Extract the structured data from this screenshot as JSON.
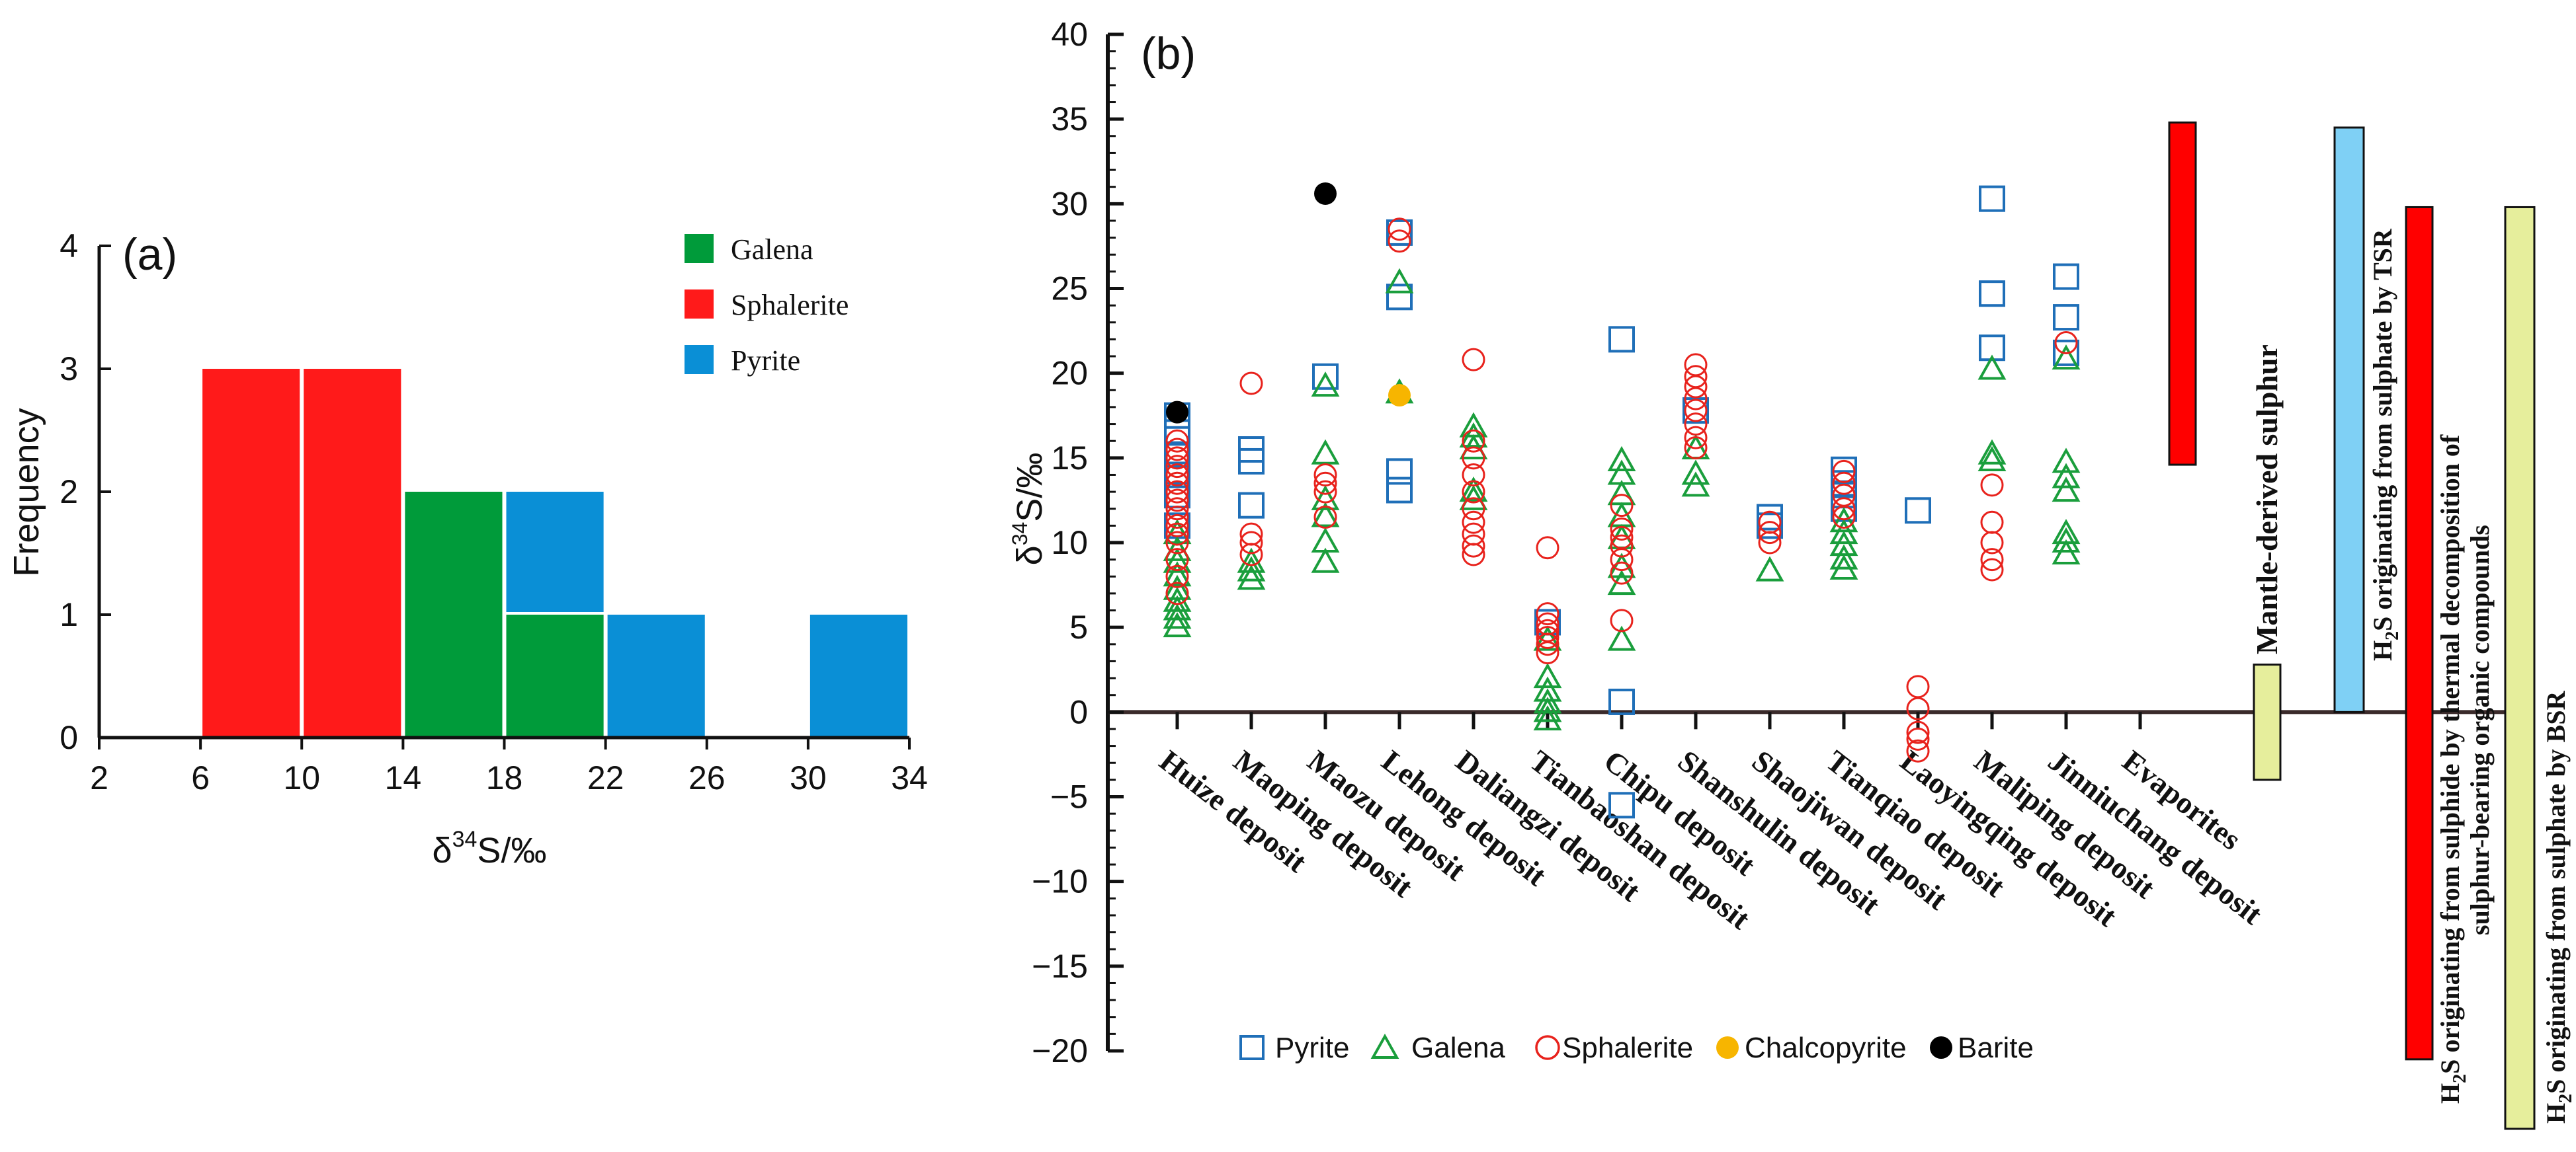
{
  "chart_data": [
    {
      "id": "a",
      "type": "bar",
      "stacked": true,
      "panel_label": "(a)",
      "xlabel_main": "δ",
      "xlabel_sup": "34",
      "xlabel_rest": "S/‰",
      "ylabel": "Frequency",
      "xlim": [
        2,
        34
      ],
      "ylim": [
        0,
        4
      ],
      "x_ticks": [
        "2",
        "6",
        "10",
        "14",
        "18",
        "22",
        "26",
        "30",
        "34"
      ],
      "y_ticks": [
        "0",
        "1",
        "2",
        "3",
        "4"
      ],
      "legend": [
        {
          "name": "Galena",
          "color": "#009b3a"
        },
        {
          "name": "Sphalerite",
          "color": "#ff1a1a"
        },
        {
          "name": "Pyrite",
          "color": "#0a8fd6"
        }
      ],
      "bars": [
        {
          "x0": 6,
          "x1": 10,
          "series": "Sphalerite",
          "value": 3,
          "base": 0
        },
        {
          "x0": 10,
          "x1": 14,
          "series": "Sphalerite",
          "value": 3,
          "base": 0
        },
        {
          "x0": 14,
          "x1": 18,
          "series": "Galena",
          "value": 2,
          "base": 0
        },
        {
          "x0": 18,
          "x1": 22,
          "series": "Galena",
          "value": 1,
          "base": 0
        },
        {
          "x0": 18,
          "x1": 22,
          "series": "Pyrite",
          "value": 1,
          "base": 1
        },
        {
          "x0": 22,
          "x1": 26,
          "series": "Pyrite",
          "value": 1,
          "base": 0
        },
        {
          "x0": 30,
          "x1": 34,
          "series": "Pyrite",
          "value": 1,
          "base": 0
        }
      ]
    },
    {
      "id": "b",
      "type": "scatter",
      "panel_label": "(b)",
      "ylabel_main": "δ",
      "ylabel_sup": "34",
      "ylabel_rest": "S/‰",
      "ylim": [
        -20,
        40
      ],
      "y_ticks": [
        "−20",
        "−15",
        "−10",
        "−5",
        "0",
        "5",
        "10",
        "15",
        "20",
        "25",
        "30",
        "35",
        "40"
      ],
      "categories": [
        "Huize deposit",
        "Maoping deposit",
        "Maozu deposit",
        "Lehong deposit",
        "Daliangzi deposit",
        "Tianbaoshan deposit",
        "Chipu deposit",
        "Shanshulin deposit",
        "Shaojiwan deposit",
        "Tianqiao deposit",
        "Laoyingqing deposit",
        "Maliping deposit",
        "Jinniuchang deposit",
        "Evaporites"
      ],
      "legend": [
        {
          "name": "Pyrite",
          "symbol": "square",
          "color": "#1f6fb8"
        },
        {
          "name": "Galena",
          "symbol": "triangle",
          "color": "#1a9e3c"
        },
        {
          "name": "Sphalerite",
          "symbol": "circle",
          "color": "#e8221c"
        },
        {
          "name": "Chalcopyrite",
          "symbol": "filled-circle",
          "color": "#f7b500"
        },
        {
          "name": "Barite",
          "symbol": "filled-circle",
          "color": "#000000"
        }
      ],
      "series": [
        {
          "name": "Pyrite",
          "points": [
            [
              0,
              17.5
            ],
            [
              0,
              16.5
            ],
            [
              0,
              15.2
            ],
            [
              0,
              14.0
            ],
            [
              0,
              12.8
            ],
            [
              0,
              11.0
            ],
            [
              1,
              15.5
            ],
            [
              1,
              14.8
            ],
            [
              1,
              12.2
            ],
            [
              2,
              19.8
            ],
            [
              3,
              28.3
            ],
            [
              3,
              24.5
            ],
            [
              3,
              14.2
            ],
            [
              3,
              13.1
            ],
            [
              5,
              5.3
            ],
            [
              6,
              22.0
            ],
            [
              6,
              0.6
            ],
            [
              6,
              -5.5
            ],
            [
              7,
              17.8
            ],
            [
              8,
              11.5
            ],
            [
              8,
              11.0
            ],
            [
              9,
              14.3
            ],
            [
              9,
              13.5
            ],
            [
              9,
              12.8
            ],
            [
              9,
              12.0
            ],
            [
              10,
              11.9
            ],
            [
              11,
              30.3
            ],
            [
              11,
              24.7
            ],
            [
              11,
              21.5
            ],
            [
              12,
              25.7
            ],
            [
              12,
              23.3
            ],
            [
              12,
              21.2
            ]
          ]
        },
        {
          "name": "Galena",
          "points": [
            [
              0,
              10.5
            ],
            [
              0,
              9.5
            ],
            [
              0,
              8.8
            ],
            [
              0,
              8.0
            ],
            [
              0,
              7.2
            ],
            [
              0,
              6.5
            ],
            [
              0,
              6.0
            ],
            [
              0,
              5.5
            ],
            [
              0,
              5.0
            ],
            [
              1,
              8.8
            ],
            [
              1,
              8.3
            ],
            [
              1,
              7.8
            ],
            [
              2,
              19.2
            ],
            [
              2,
              15.2
            ],
            [
              2,
              12.5
            ],
            [
              2,
              11.5
            ],
            [
              2,
              10.0
            ],
            [
              2,
              8.8
            ],
            [
              3,
              25.3
            ],
            [
              3,
              18.8
            ],
            [
              4,
              16.8
            ],
            [
              4,
              16.2
            ],
            [
              4,
              15.5
            ],
            [
              4,
              13.0
            ],
            [
              4,
              12.5
            ],
            [
              5,
              4.2
            ],
            [
              5,
              2.0
            ],
            [
              5,
              1.2
            ],
            [
              5,
              0.5
            ],
            [
              5,
              0.0
            ],
            [
              5,
              -0.5
            ],
            [
              6,
              14.8
            ],
            [
              6,
              14.0
            ],
            [
              6,
              12.8
            ],
            [
              6,
              11.5
            ],
            [
              6,
              10.2
            ],
            [
              6,
              8.5
            ],
            [
              6,
              7.5
            ],
            [
              6,
              4.2
            ],
            [
              7,
              15.5
            ],
            [
              7,
              14.0
            ],
            [
              7,
              13.3
            ],
            [
              8,
              8.3
            ],
            [
              9,
              11.2
            ],
            [
              9,
              10.5
            ],
            [
              9,
              9.8
            ],
            [
              9,
              9.0
            ],
            [
              9,
              8.4
            ],
            [
              11,
              20.2
            ],
            [
              11,
              15.2
            ],
            [
              11,
              14.8
            ],
            [
              12,
              20.8
            ],
            [
              12,
              14.7
            ],
            [
              12,
              13.8
            ],
            [
              12,
              13.0
            ],
            [
              12,
              10.5
            ],
            [
              12,
              10.0
            ],
            [
              12,
              9.3
            ]
          ]
        },
        {
          "name": "Sphalerite",
          "points": [
            [
              0,
              16.0
            ],
            [
              0,
              15.5
            ],
            [
              0,
              15.0
            ],
            [
              0,
              14.5
            ],
            [
              0,
              14.0
            ],
            [
              0,
              13.5
            ],
            [
              0,
              13.0
            ],
            [
              0,
              12.5
            ],
            [
              0,
              12.0
            ],
            [
              0,
              11.5
            ],
            [
              0,
              11.0
            ],
            [
              0,
              10.5
            ],
            [
              0,
              10.0
            ],
            [
              0,
              9.0
            ],
            [
              0,
              8.0
            ],
            [
              0,
              7.0
            ],
            [
              1,
              19.4
            ],
            [
              1,
              10.5
            ],
            [
              1,
              10.0
            ],
            [
              1,
              9.3
            ],
            [
              2,
              14.0
            ],
            [
              2,
              13.5
            ],
            [
              2,
              13.0
            ],
            [
              2,
              11.5
            ],
            [
              3,
              28.5
            ],
            [
              3,
              27.8
            ],
            [
              4,
              20.8
            ],
            [
              4,
              16.0
            ],
            [
              4,
              15.0
            ],
            [
              4,
              14.0
            ],
            [
              4,
              13.0
            ],
            [
              4,
              12.0
            ],
            [
              4,
              11.2
            ],
            [
              4,
              10.5
            ],
            [
              4,
              9.8
            ],
            [
              4,
              9.3
            ],
            [
              5,
              9.7
            ],
            [
              5,
              5.8
            ],
            [
              5,
              5.2
            ],
            [
              5,
              4.8
            ],
            [
              5,
              4.4
            ],
            [
              5,
              4.0
            ],
            [
              5,
              3.5
            ],
            [
              6,
              12.2
            ],
            [
              6,
              10.8
            ],
            [
              6,
              10.3
            ],
            [
              6,
              9.8
            ],
            [
              6,
              9.0
            ],
            [
              6,
              8.2
            ],
            [
              6,
              5.4
            ],
            [
              7,
              20.5
            ],
            [
              7,
              19.8
            ],
            [
              7,
              19.2
            ],
            [
              7,
              18.5
            ],
            [
              7,
              17.8
            ],
            [
              7,
              17.0
            ],
            [
              7,
              16.2
            ],
            [
              7,
              15.6
            ],
            [
              8,
              11.2
            ],
            [
              8,
              10.6
            ],
            [
              8,
              10.0
            ],
            [
              9,
              14.2
            ],
            [
              9,
              13.5
            ],
            [
              9,
              12.8
            ],
            [
              9,
              12.0
            ],
            [
              9,
              11.5
            ],
            [
              10,
              1.5
            ],
            [
              10,
              0.2
            ],
            [
              10,
              -1.2
            ],
            [
              10,
              -1.6
            ],
            [
              10,
              -2.3
            ],
            [
              11,
              13.4
            ],
            [
              11,
              11.2
            ],
            [
              11,
              10.0
            ],
            [
              11,
              9.0
            ],
            [
              11,
              8.4
            ],
            [
              12,
              21.8
            ]
          ]
        },
        {
          "name": "Chalcopyrite",
          "points": [
            [
              3,
              18.7
            ]
          ]
        },
        {
          "name": "Barite",
          "points": [
            [
              0,
              17.7
            ],
            [
              2,
              30.6
            ]
          ]
        }
      ],
      "sources": [
        {
          "label": "Mantle-derived sulphur",
          "ymin": -4,
          "ymax": 2.8,
          "color": "#e6ee9c"
        },
        {
          "label_main": "H",
          "label_sub": "2",
          "label_rest": "S originating from sulphate by TSR",
          "ymin": 0,
          "ymax": 34.5,
          "color": "#7fd0f5"
        },
        {
          "label_main": "H",
          "label_sub": "2",
          "label_rest": "S originating from sulphide by thermal decomposition of",
          "label_line2": "sulphur-bearing organic compounds",
          "ymin": -20.5,
          "ymax": 29.8,
          "color": "#ff0000"
        },
        {
          "label_main": "H",
          "label_sub": "2",
          "label_rest": "S originating from sulphate by BSR",
          "ymin": -24.6,
          "ymax": 29.8,
          "color": "#e6ee9c"
        }
      ],
      "evaporites_bar": {
        "ymin": 14.6,
        "ymax": 34.8,
        "color": "#ff0000"
      }
    }
  ]
}
